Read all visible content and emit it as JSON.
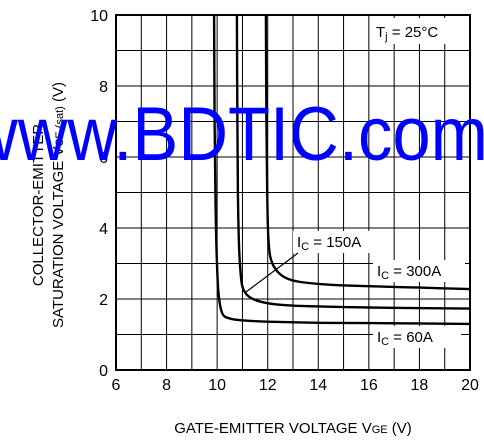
{
  "chart_data": {
    "type": "line",
    "title": "",
    "xlabel": "GATE-EMITTER VOLTAGE  V",
    "xlabel_sub": "GE",
    "xlabel_unit": " (V)",
    "ylabel_line1": "COLLECTOR-EMITTER",
    "ylabel_line2": "SATURATION VOLTAGE  V",
    "ylabel_sub": "CE (sat)",
    "ylabel_unit": " (V)",
    "xlim": [
      6,
      20
    ],
    "ylim": [
      0,
      10
    ],
    "x_ticks": [
      "6",
      "8",
      "10",
      "12",
      "14",
      "16",
      "18",
      "20"
    ],
    "y_ticks": [
      "0",
      "2",
      "4",
      "6",
      "8",
      "10"
    ],
    "grid": true,
    "condition": "Tj = 25°C",
    "watermark": "www.BDTIC.com",
    "series": [
      {
        "name": "IC = 60A",
        "x": [
          9.88,
          9.9,
          9.93,
          9.97,
          10.05,
          10.2,
          10.5,
          11,
          12,
          14,
          16,
          20
        ],
        "y": [
          10,
          7,
          5,
          3.5,
          2.2,
          1.6,
          1.45,
          1.4,
          1.36,
          1.33,
          1.32,
          1.3
        ]
      },
      {
        "name": "IC = 150A",
        "x": [
          10.78,
          10.8,
          10.82,
          10.86,
          10.92,
          11.0,
          11.2,
          11.6,
          12.3,
          13.5,
          16,
          20
        ],
        "y": [
          10,
          7,
          5,
          3.6,
          2.8,
          2.35,
          2.1,
          1.95,
          1.85,
          1.8,
          1.76,
          1.73
        ]
      },
      {
        "name": "IC = 300A",
        "x": [
          11.93,
          11.95,
          11.98,
          12.02,
          12.1,
          12.3,
          12.7,
          13.3,
          14.5,
          16,
          18,
          20
        ],
        "y": [
          10,
          7,
          5,
          3.8,
          3.2,
          2.85,
          2.6,
          2.48,
          2.4,
          2.36,
          2.32,
          2.28
        ]
      }
    ],
    "annotations": [
      {
        "label": "IC = 150A",
        "main": "I",
        "sub": "C",
        "rest": " = 150A"
      },
      {
        "label": "IC = 300A",
        "main": "I",
        "sub": "C",
        "rest": " = 300A"
      },
      {
        "label": "IC = 60A",
        "main": "I",
        "sub": "C",
        "rest": " = 60A"
      }
    ],
    "tj_label": {
      "main": "T",
      "sub": "j",
      "rest": " = 25°C"
    }
  }
}
